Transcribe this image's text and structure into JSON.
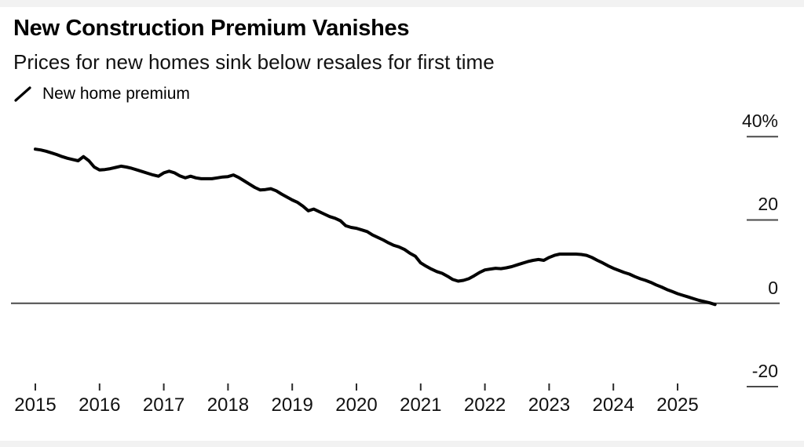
{
  "header": {
    "title": "New Construction Premium Vanishes",
    "subtitle": "Prices for new homes sink below resales for first time"
  },
  "legend": {
    "label": "New home premium",
    "icon": "diagonal-line-icon",
    "line_color": "#000000"
  },
  "chart_data": {
    "type": "line",
    "title": "New Construction Premium Vanishes",
    "subtitle": "Prices for new homes sink below resales for first time",
    "grid": "off",
    "legend_position": "top-left",
    "axis_color": "#4a4a4a",
    "background_color": "#ffffff",
    "edge_strip_color": "#f2f2f2",
    "ylim": [
      -25,
      42
    ],
    "baseline": 0,
    "y_ticks": [
      {
        "label": "40%",
        "value": 40
      },
      {
        "label": "20",
        "value": 20
      },
      {
        "label": "0",
        "value": 0
      },
      {
        "label": "-20",
        "value": -20
      }
    ],
    "x_ticks": [
      "2015",
      "2016",
      "2017",
      "2018",
      "2019",
      "2020",
      "2021",
      "2022",
      "2023",
      "2024",
      "2025"
    ],
    "series": [
      {
        "name": "New home premium",
        "color": "#000000",
        "unit": "%",
        "frequency": "monthly",
        "x_start": "2015-01",
        "x_end": "2025-08",
        "values": [
          37.0,
          36.8,
          36.5,
          36.1,
          35.7,
          35.2,
          34.8,
          34.5,
          34.2,
          35.2,
          34.2,
          32.7,
          32.0,
          32.1,
          32.3,
          32.6,
          32.9,
          32.7,
          32.4,
          32.0,
          31.6,
          31.2,
          30.8,
          30.5,
          31.3,
          31.7,
          31.3,
          30.6,
          30.1,
          30.5,
          30.1,
          29.9,
          29.9,
          29.9,
          30.1,
          30.3,
          30.4,
          30.8,
          30.2,
          29.4,
          28.6,
          27.8,
          27.2,
          27.3,
          27.5,
          27.0,
          26.2,
          25.5,
          24.8,
          24.2,
          23.3,
          22.2,
          22.6,
          22.0,
          21.4,
          20.8,
          20.4,
          19.8,
          18.6,
          18.2,
          18.0,
          17.6,
          17.2,
          16.4,
          15.8,
          15.2,
          14.5,
          13.9,
          13.5,
          12.9,
          12.0,
          11.3,
          9.7,
          8.9,
          8.2,
          7.6,
          7.2,
          6.5,
          5.7,
          5.3,
          5.5,
          5.9,
          6.6,
          7.4,
          8.0,
          8.2,
          8.4,
          8.3,
          8.5,
          8.8,
          9.2,
          9.6,
          10.0,
          10.3,
          10.5,
          10.3,
          11.0,
          11.5,
          11.8,
          11.8,
          11.8,
          11.8,
          11.7,
          11.5,
          11.0,
          10.3,
          9.7,
          9.0,
          8.4,
          7.9,
          7.4,
          7.0,
          6.4,
          5.9,
          5.5,
          5.0,
          4.4,
          3.9,
          3.3,
          2.8,
          2.3,
          1.9,
          1.5,
          1.1,
          0.7,
          0.4,
          0.1,
          -0.3
        ]
      }
    ]
  }
}
